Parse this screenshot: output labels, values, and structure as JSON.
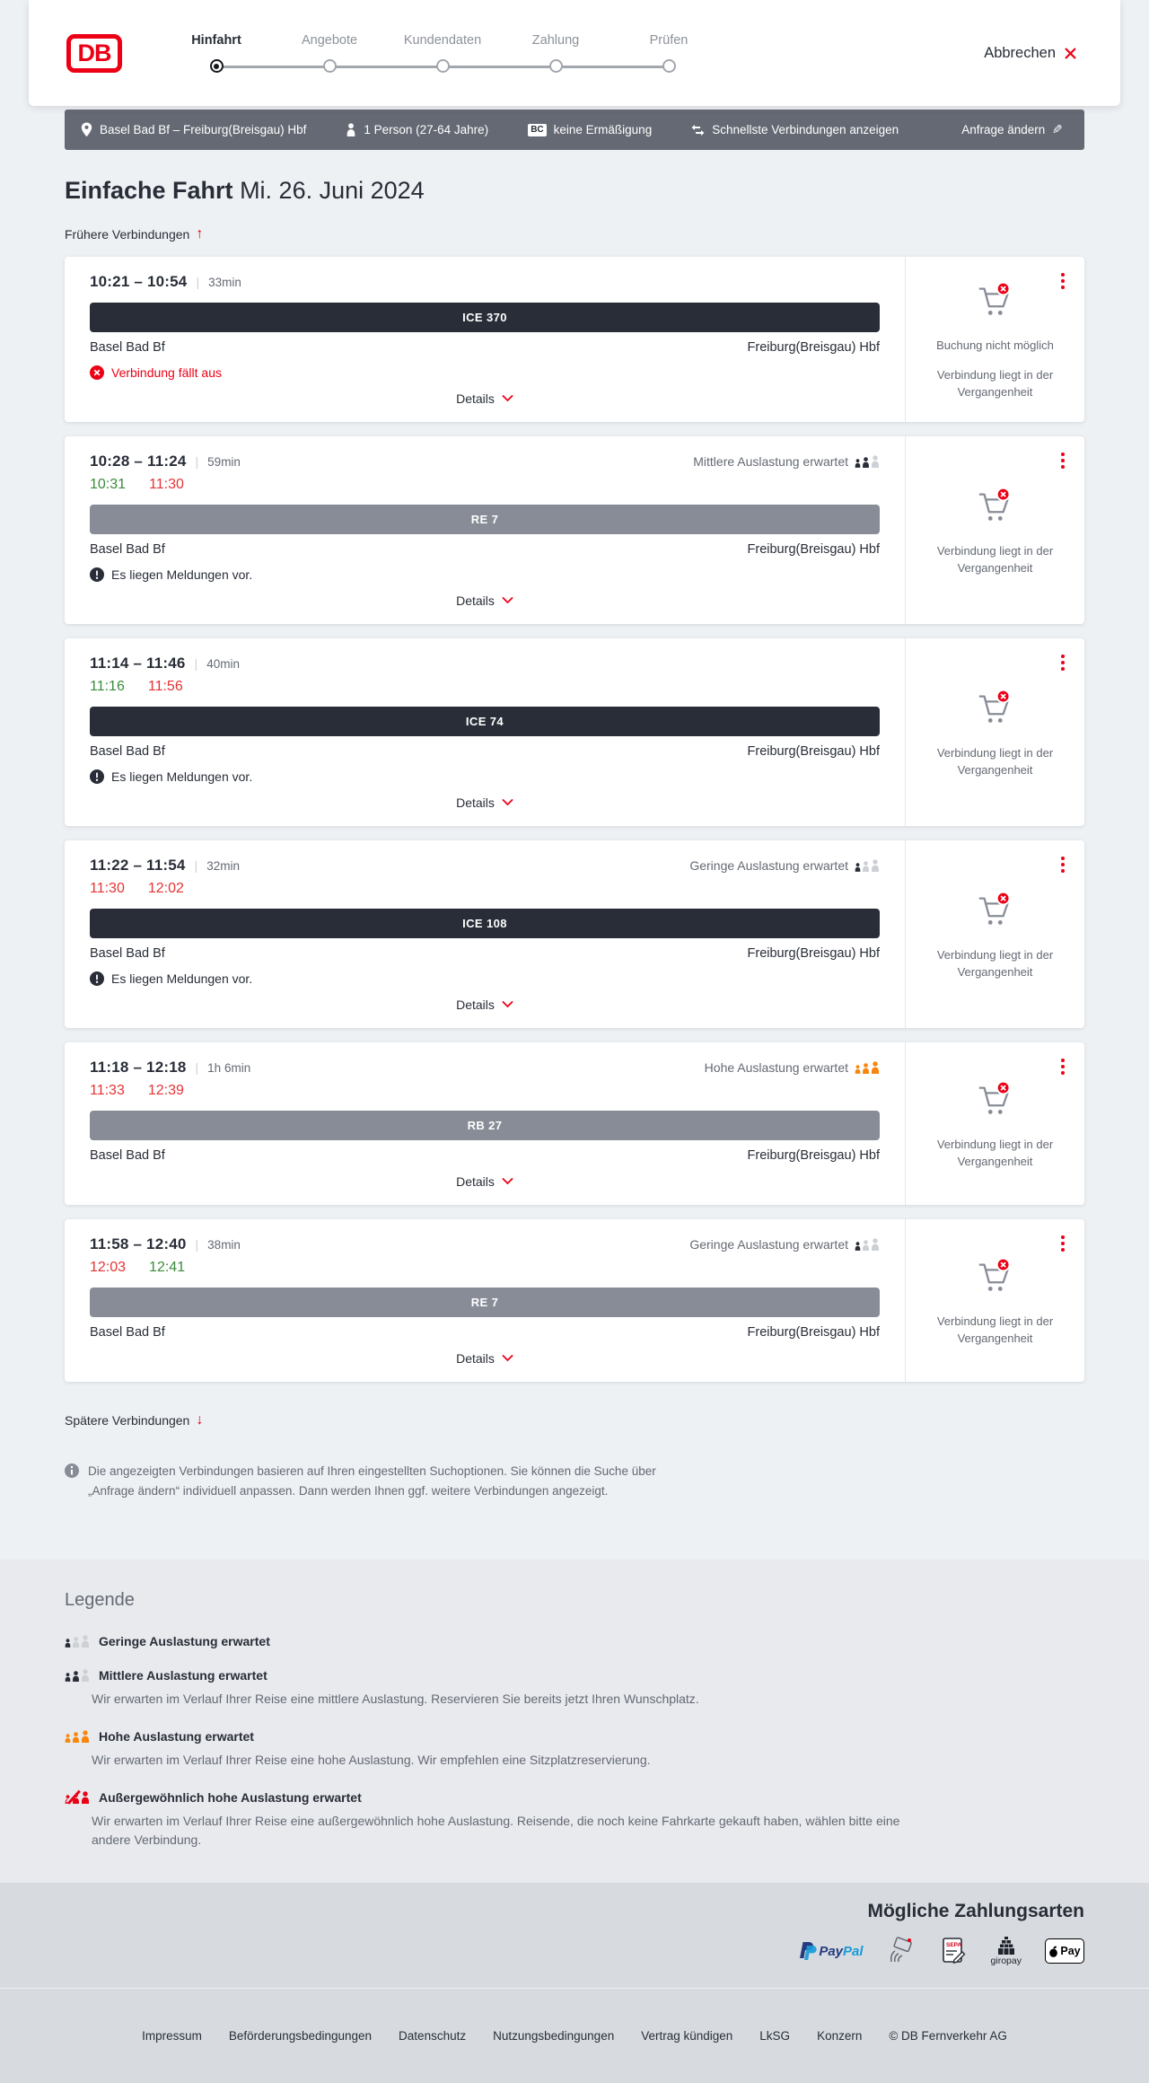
{
  "colors": {
    "brand_red": "#ec0016",
    "dark": "#282d37",
    "slate": "#646973",
    "light_person": "#cdd0d4",
    "green_ontime": "#3c8a3c",
    "red_delayed": "#e63235",
    "orange_high": "#f8860d",
    "train_bar_dark": "#282d37",
    "train_bar_gray": "#878c96"
  },
  "header": {
    "logo_text": "DB",
    "cancel_label": "Abbrechen",
    "steps": [
      {
        "label": "Hinfahrt",
        "active": true
      },
      {
        "label": "Angebote",
        "active": false
      },
      {
        "label": "Kundendaten",
        "active": false
      },
      {
        "label": "Zahlung",
        "active": false
      },
      {
        "label": "Prüfen",
        "active": false
      }
    ]
  },
  "filter_bar": {
    "route": "Basel Bad Bf – Freiburg(Breisgau) Hbf",
    "passengers": "1 Person (27-64 Jahre)",
    "bahncard_badge": "BC",
    "discount": "keine Ermäßigung",
    "sort_option": "Schnellste Verbindungen anzeigen",
    "edit_label": "Anfrage ändern"
  },
  "results": {
    "title": "Einfache Fahrt",
    "date": "Mi. 26. Juni 2024",
    "earlier_label": "Frühere Verbindungen",
    "later_label": "Spätere Verbindungen",
    "details_label": "Details",
    "info_note": "Die angezeigten Verbindungen basieren auf Ihren eingestellten Suchoptionen. Sie können die Suche über „Anfrage ändern“ individuell anpassen. Dann werden Ihnen ggf. weitere Verbindungen angezeigt.",
    "connections": [
      {
        "depart": "10:21",
        "arrive": "10:54",
        "duration": "33min",
        "occupancy": null,
        "realtime": null,
        "train": "ICE 370",
        "train_style": "dark",
        "from": "Basel Bad Bf",
        "to": "Freiburg(Breisgau) Hbf",
        "message": {
          "type": "cancelled",
          "text": "Verbindung fällt aus"
        },
        "side_notes": [
          "Buchung nicht möglich",
          "Verbindung liegt in der Vergangenheit"
        ]
      },
      {
        "depart": "10:28",
        "arrive": "11:24",
        "duration": "59min",
        "occupancy": {
          "label": "Mittlere Auslastung erwartet",
          "level": 2
        },
        "realtime": {
          "depart": "10:31",
          "depart_status": "ontime",
          "arrive": "11:30",
          "arrive_status": "delayed"
        },
        "train": "RE 7",
        "train_style": "gray",
        "from": "Basel Bad Bf",
        "to": "Freiburg(Breisgau) Hbf",
        "message": {
          "type": "notice",
          "text": "Es liegen Meldungen vor."
        },
        "side_notes": [
          "Verbindung liegt in der Vergangenheit"
        ]
      },
      {
        "depart": "11:14",
        "arrive": "11:46",
        "duration": "40min",
        "occupancy": null,
        "realtime": {
          "depart": "11:16",
          "depart_status": "ontime",
          "arrive": "11:56",
          "arrive_status": "delayed"
        },
        "train": "ICE 74",
        "train_style": "dark",
        "from": "Basel Bad Bf",
        "to": "Freiburg(Breisgau) Hbf",
        "message": {
          "type": "notice",
          "text": "Es liegen Meldungen vor."
        },
        "side_notes": [
          "Verbindung liegt in der Vergangenheit"
        ]
      },
      {
        "depart": "11:22",
        "arrive": "11:54",
        "duration": "32min",
        "occupancy": {
          "label": "Geringe Auslastung erwartet",
          "level": 1
        },
        "realtime": {
          "depart": "11:30",
          "depart_status": "delayed",
          "arrive": "12:02",
          "arrive_status": "delayed"
        },
        "train": "ICE 108",
        "train_style": "dark",
        "from": "Basel Bad Bf",
        "to": "Freiburg(Breisgau) Hbf",
        "message": {
          "type": "notice",
          "text": "Es liegen Meldungen vor."
        },
        "side_notes": [
          "Verbindung liegt in der Vergangenheit"
        ]
      },
      {
        "depart": "11:18",
        "arrive": "12:18",
        "duration": "1h 6min",
        "occupancy": {
          "label": "Hohe Auslastung erwartet",
          "level": 3
        },
        "realtime": {
          "depart": "11:33",
          "depart_status": "delayed",
          "arrive": "12:39",
          "arrive_status": "delayed"
        },
        "train": "RB 27",
        "train_style": "gray",
        "from": "Basel Bad Bf",
        "to": "Freiburg(Breisgau) Hbf",
        "message": null,
        "side_notes": [
          "Verbindung liegt in der Vergangenheit"
        ]
      },
      {
        "depart": "11:58",
        "arrive": "12:40",
        "duration": "38min",
        "occupancy": {
          "label": "Geringe Auslastung erwartet",
          "level": 1
        },
        "realtime": {
          "depart": "12:03",
          "depart_status": "delayed",
          "arrive": "12:41",
          "arrive_status": "ontime"
        },
        "train": "RE 7",
        "train_style": "gray",
        "from": "Basel Bad Bf",
        "to": "Freiburg(Breisgau) Hbf",
        "message": null,
        "side_notes": [
          "Verbindung liegt in der Vergangenheit"
        ]
      }
    ]
  },
  "legend": {
    "title": "Legende",
    "items": [
      {
        "level": 1,
        "label": "Geringe Auslastung erwartet",
        "description": null
      },
      {
        "level": 2,
        "label": "Mittlere Auslastung erwartet",
        "description": "Wir erwarten im Verlauf Ihrer Reise eine mittlere Auslastung. Reservieren Sie bereits jetzt Ihren Wunschplatz."
      },
      {
        "level": 3,
        "label": "Hohe Auslastung erwartet",
        "description": "Wir erwarten im Verlauf Ihrer Reise eine hohe Auslastung. Wir empfehlen eine Sitzplatzreservierung."
      },
      {
        "level": 4,
        "label": "Außergewöhnlich hohe Auslastung erwartet",
        "description": "Wir erwarten im Verlauf Ihrer Reise eine außergewöhnlich hohe Auslastung. Reisende, die noch keine Fahrkarte gekauft haben, wählen bitte eine andere Verbindung."
      }
    ]
  },
  "payments": {
    "title": "Mögliche Zahlungsarten",
    "paypal_part1": "Pay",
    "paypal_part2": "Pal",
    "giropay_label": "giropay",
    "applepay_label": "Pay",
    "methods": [
      "PayPal",
      "Kreditkarte",
      "SEPA-Lastschrift",
      "giropay",
      "Apple Pay"
    ]
  },
  "footer": {
    "links": [
      "Impressum",
      "Beförderungsbedingungen",
      "Datenschutz",
      "Nutzungsbedingungen",
      "Vertrag kündigen",
      "LkSG",
      "Konzern"
    ],
    "copyright": "© DB Fernverkehr AG"
  }
}
